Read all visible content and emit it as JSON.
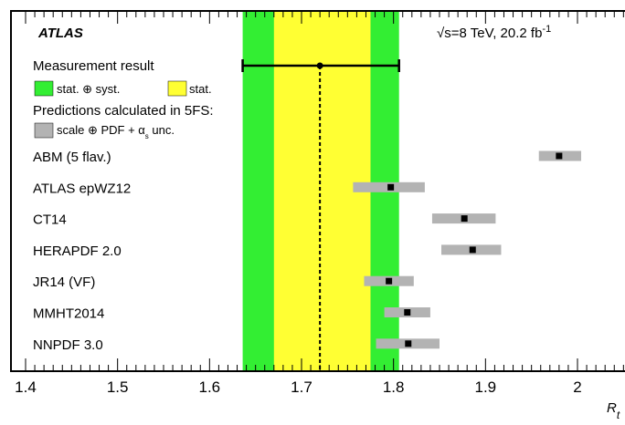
{
  "chart_data": {
    "type": "forest",
    "experiment": "ATLAS",
    "energy_label": "√s=8 TeV, 20.2 fb",
    "energy_sup": "-1",
    "xlabel": "R",
    "xlabel_sub": "t",
    "xlim": [
      1.4,
      2.05
    ],
    "x_ticks": [
      1.4,
      1.5,
      1.6,
      1.7,
      1.8,
      1.9,
      2.0
    ],
    "x_tick_labels": [
      "1.4",
      "1.5",
      "1.6",
      "1.7",
      "1.8",
      "1.9",
      "2"
    ],
    "measurement": {
      "value": 1.72,
      "stat_low": 1.67,
      "stat_high": 1.775,
      "total_low": 1.636,
      "total_high": 1.806,
      "stat_color": "#ffff33",
      "total_color": "#33ee33"
    },
    "legend": {
      "measurement_label": "Measurement result",
      "total_label": "stat. ⊕ syst.",
      "stat_label": "stat.",
      "predictions_label": "Predictions calculated in 5FS:",
      "unc_label": "scale ⊕ PDF + α",
      "unc_sub": "s",
      "unc_suffix": " unc.",
      "pred_color": "#b3b3b3"
    },
    "predictions": [
      {
        "name": "ABM (5 flav.)",
        "value": 1.98,
        "low": 1.958,
        "high": 2.004
      },
      {
        "name": "ATLAS epWZ12",
        "value": 1.797,
        "low": 1.756,
        "high": 1.834
      },
      {
        "name": "CT14",
        "value": 1.877,
        "low": 1.842,
        "high": 1.911
      },
      {
        "name": "HERAPDF 2.0",
        "value": 1.886,
        "low": 1.852,
        "high": 1.917
      },
      {
        "name": "JR14 (VF)",
        "value": 1.795,
        "low": 1.768,
        "high": 1.822
      },
      {
        "name": "MMHT2014",
        "value": 1.815,
        "low": 1.79,
        "high": 1.84
      },
      {
        "name": "NNPDF 3.0",
        "value": 1.816,
        "low": 1.781,
        "high": 1.85
      }
    ]
  }
}
